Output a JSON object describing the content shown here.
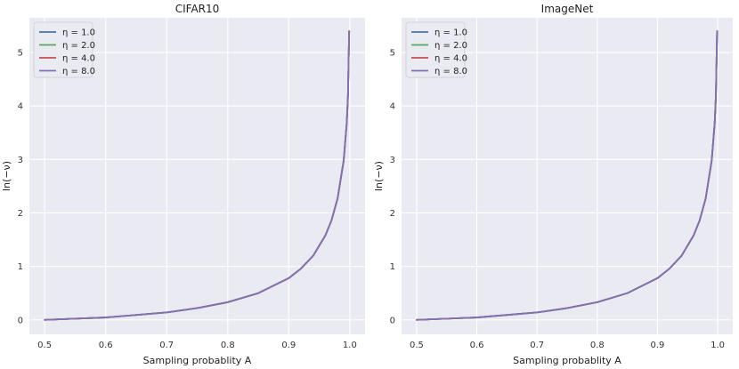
{
  "chart_data": [
    {
      "type": "line",
      "title": "CIFAR10",
      "xlabel": "Sampling probablity A",
      "ylabel": "ln(−ν)",
      "xlim": [
        0.475,
        1.025
      ],
      "ylim": [
        -0.27,
        5.65
      ],
      "xticks": [
        0.5,
        0.6,
        0.7,
        0.8,
        0.9,
        1.0
      ],
      "xtick_labels": [
        "0.5",
        "0.6",
        "0.7",
        "0.8",
        "0.9",
        "1.0"
      ],
      "yticks": [
        0,
        1,
        2,
        3,
        4,
        5
      ],
      "ytick_labels": [
        "0",
        "1",
        "2",
        "3",
        "4",
        "5"
      ],
      "grid": true,
      "legend_position": "top-left",
      "x": [
        0.5,
        0.6,
        0.7,
        0.75,
        0.8,
        0.85,
        0.9,
        0.92,
        0.94,
        0.96,
        0.97,
        0.98,
        0.99,
        0.995,
        0.997,
        0.999
      ],
      "series": [
        {
          "name": "η = 1.0",
          "color": "#4c72b0",
          "values": [
            0.0,
            0.045,
            0.14,
            0.22,
            0.33,
            0.5,
            0.78,
            0.96,
            1.2,
            1.58,
            1.86,
            2.27,
            2.98,
            3.68,
            4.19,
            5.4
          ]
        },
        {
          "name": "η = 2.0",
          "color": "#55a868",
          "values": [
            0.0,
            0.045,
            0.14,
            0.22,
            0.33,
            0.5,
            0.78,
            0.96,
            1.2,
            1.58,
            1.86,
            2.27,
            2.98,
            3.68,
            4.19,
            5.4
          ]
        },
        {
          "name": "η = 4.0",
          "color": "#c44e52",
          "values": [
            0.0,
            0.045,
            0.14,
            0.22,
            0.33,
            0.5,
            0.78,
            0.96,
            1.2,
            1.58,
            1.86,
            2.27,
            2.98,
            3.68,
            4.19,
            5.4
          ]
        },
        {
          "name": "η = 8.0",
          "color": "#8172b2",
          "values": [
            0.0,
            0.045,
            0.14,
            0.22,
            0.33,
            0.5,
            0.78,
            0.96,
            1.2,
            1.58,
            1.86,
            2.27,
            2.98,
            3.68,
            4.19,
            5.4
          ]
        }
      ]
    },
    {
      "type": "line",
      "title": "ImageNet",
      "xlabel": "Sampling probablity A",
      "ylabel": "ln(−ν)",
      "xlim": [
        0.475,
        1.025
      ],
      "ylim": [
        -0.27,
        5.65
      ],
      "xticks": [
        0.5,
        0.6,
        0.7,
        0.8,
        0.9,
        1.0
      ],
      "xtick_labels": [
        "0.5",
        "0.6",
        "0.7",
        "0.8",
        "0.9",
        "1.0"
      ],
      "yticks": [
        0,
        1,
        2,
        3,
        4,
        5
      ],
      "ytick_labels": [
        "0",
        "1",
        "2",
        "3",
        "4",
        "5"
      ],
      "grid": true,
      "legend_position": "top-left",
      "x": [
        0.5,
        0.6,
        0.7,
        0.75,
        0.8,
        0.85,
        0.9,
        0.92,
        0.94,
        0.96,
        0.97,
        0.98,
        0.99,
        0.995,
        0.997,
        0.999
      ],
      "series": [
        {
          "name": "η = 1.0",
          "color": "#4c72b0",
          "values": [
            0.0,
            0.045,
            0.14,
            0.22,
            0.33,
            0.5,
            0.78,
            0.96,
            1.2,
            1.58,
            1.86,
            2.27,
            2.98,
            3.68,
            4.19,
            5.4
          ]
        },
        {
          "name": "η = 2.0",
          "color": "#55a868",
          "values": [
            0.0,
            0.045,
            0.14,
            0.22,
            0.33,
            0.5,
            0.78,
            0.96,
            1.2,
            1.58,
            1.86,
            2.27,
            2.98,
            3.68,
            4.19,
            5.4
          ]
        },
        {
          "name": "η = 4.0",
          "color": "#c44e52",
          "values": [
            0.0,
            0.045,
            0.14,
            0.22,
            0.33,
            0.5,
            0.78,
            0.96,
            1.2,
            1.58,
            1.86,
            2.27,
            2.98,
            3.68,
            4.19,
            5.4
          ]
        },
        {
          "name": "η = 8.0",
          "color": "#8172b2",
          "values": [
            0.0,
            0.045,
            0.14,
            0.22,
            0.33,
            0.5,
            0.78,
            0.96,
            1.2,
            1.58,
            1.86,
            2.27,
            2.98,
            3.68,
            4.19,
            5.4
          ]
        }
      ]
    }
  ]
}
